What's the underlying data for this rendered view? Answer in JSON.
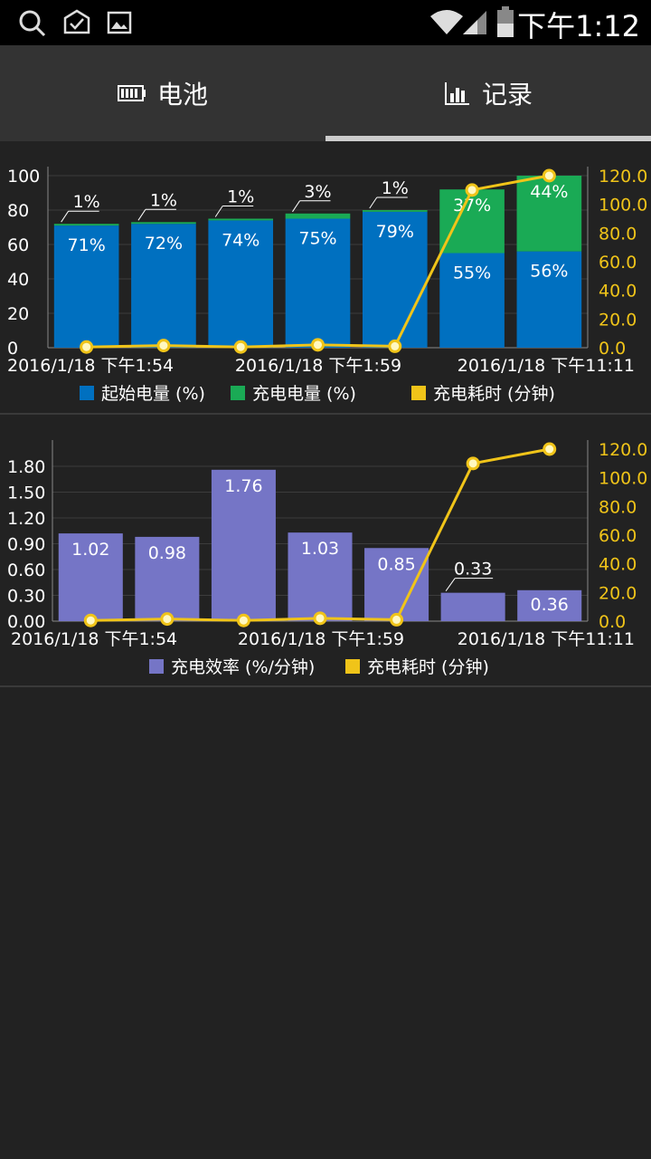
{
  "status_bar": {
    "time": "下午1:12",
    "icons": [
      "search-icon",
      "mail-check-icon",
      "image-icon",
      "wifi-icon",
      "signal-icon",
      "battery-icon"
    ]
  },
  "tabs": [
    {
      "label": "电池",
      "icon": "battery-icon",
      "selected": false
    },
    {
      "label": "记录",
      "icon": "bar-chart-icon",
      "selected": true
    }
  ],
  "colors": {
    "start_level": "#0070c0",
    "charge_amount": "#1aaa55",
    "charge_time": "#f0c419",
    "efficiency": "#7575c6",
    "background": "#222222"
  },
  "chart_data": [
    {
      "type": "bar",
      "stacked": true,
      "categories": [
        "2016/1/18 下午1:54",
        "",
        "",
        "2016/1/18 下午1:59",
        "",
        "",
        "2016/1/18 下午11:11"
      ],
      "x_tick_labels": [
        "2016/1/18 下午1:54",
        "2016/1/18 下午1:59",
        "2016/1/18 下午11:11"
      ],
      "series": [
        {
          "name": "起始电量 (%)",
          "axis": "left",
          "values": [
            71,
            72,
            74,
            75,
            79,
            55,
            56
          ],
          "labels": [
            "71%",
            "72%",
            "74%",
            "75%",
            "79%",
            "55%",
            "56%"
          ]
        },
        {
          "name": "充电电量 (%)",
          "axis": "left",
          "values": [
            1,
            1,
            1,
            3,
            1,
            37,
            44
          ],
          "labels": [
            "1%",
            "1%",
            "1%",
            "3%",
            "1%",
            "37%",
            "44%"
          ]
        },
        {
          "name": "充电耗时 (分钟)",
          "type": "line",
          "axis": "right",
          "values": [
            0.5,
            1.5,
            0.5,
            2.0,
            1.0,
            110.0,
            120.0
          ]
        }
      ],
      "y_left": {
        "ylim": [
          0,
          100
        ],
        "ticks": [
          "0",
          "20",
          "40",
          "60",
          "80",
          "100"
        ]
      },
      "y_right": {
        "ylim": [
          0,
          120
        ],
        "ticks": [
          "0.0",
          "20.0",
          "40.0",
          "60.0",
          "80.0",
          "100.0",
          "120.0"
        ]
      },
      "grid": true,
      "legend": "bottom"
    },
    {
      "type": "bar",
      "stacked": false,
      "categories": [
        "2016/1/18 下午1:54",
        "",
        "",
        "2016/1/18 下午1:59",
        "",
        "",
        "2016/1/18 下午11:11"
      ],
      "x_tick_labels": [
        "2016/1/18 下午1:54",
        "2016/1/18 下午1:59",
        "2016/1/18 下午11:11"
      ],
      "series": [
        {
          "name": "充电效率 (%/分钟)",
          "axis": "left",
          "values": [
            1.02,
            0.98,
            1.76,
            1.03,
            0.85,
            0.33,
            0.36
          ],
          "labels": [
            "1.02",
            "0.98",
            "1.76",
            "1.03",
            "0.85",
            "0.33",
            "0.36"
          ]
        },
        {
          "name": "充电耗时 (分钟)",
          "type": "line",
          "axis": "right",
          "values": [
            0.5,
            1.5,
            0.5,
            2.0,
            1.0,
            110.0,
            120.0
          ]
        }
      ],
      "y_left": {
        "ylim": [
          0,
          2.0
        ],
        "ticks": [
          "0.00",
          "0.30",
          "0.60",
          "0.90",
          "1.20",
          "1.50",
          "1.80"
        ]
      },
      "y_right": {
        "ylim": [
          0,
          120
        ],
        "ticks": [
          "0.0",
          "20.0",
          "40.0",
          "60.0",
          "80.0",
          "100.0",
          "120.0"
        ]
      },
      "grid": true,
      "legend": "bottom"
    }
  ]
}
